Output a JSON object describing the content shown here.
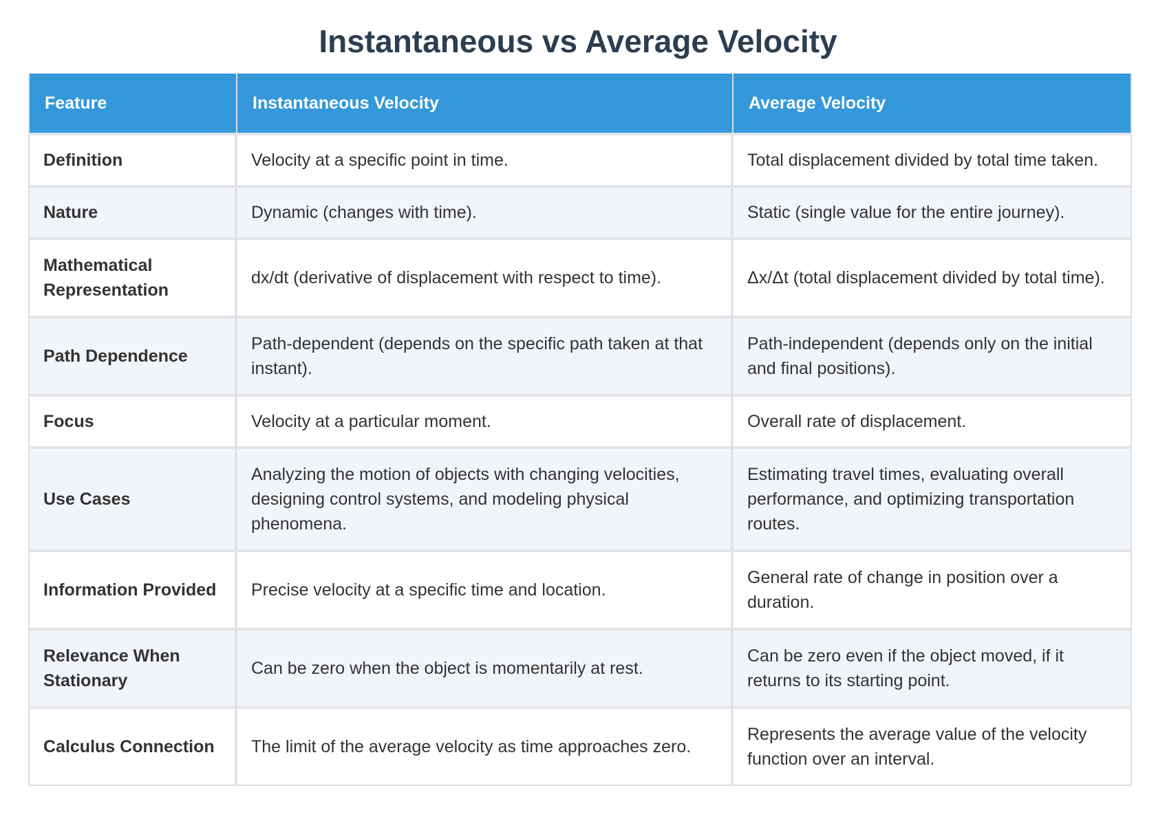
{
  "title": "Instantaneous vs Average Velocity",
  "headers": {
    "feature": "Feature",
    "instantaneous": "Instantaneous Velocity",
    "average": "Average Velocity"
  },
  "rows": [
    {
      "feature": "Definition",
      "instantaneous": "Velocity at a specific point in time.",
      "average": "Total displacement divided by total time taken."
    },
    {
      "feature": "Nature",
      "instantaneous": "Dynamic (changes with time).",
      "average": "Static (single value for the entire journey)."
    },
    {
      "feature": "Mathematical Representation",
      "instantaneous": "dx/dt (derivative of displacement with respect to time).",
      "average": "Δx/Δt (total displacement divided by total time)."
    },
    {
      "feature": "Path Dependence",
      "instantaneous": "Path-dependent (depends on the specific path taken at that instant).",
      "average": "Path-independent (depends only on the initial and final positions)."
    },
    {
      "feature": "Focus",
      "instantaneous": "Velocity at a particular moment.",
      "average": "Overall rate of displacement."
    },
    {
      "feature": "Use Cases",
      "instantaneous": "Analyzing the motion of objects with changing velocities, designing control systems, and modeling physical phenomena.",
      "average": "Estimating travel times, evaluating overall performance, and optimizing transportation routes."
    },
    {
      "feature": "Information Provided",
      "instantaneous": "Precise velocity at a specific time and location.",
      "average": "General rate of change in position over a duration."
    },
    {
      "feature": "Relevance When Stationary",
      "instantaneous": "Can be zero when the object is momentarily at rest.",
      "average": "Can be zero even if the object moved, if it returns to its starting point."
    },
    {
      "feature": "Calculus Connection",
      "instantaneous": "The limit of the average velocity as time approaches zero.",
      "average": "Represents the average value of the velocity function over an interval."
    }
  ],
  "colors": {
    "title": "#2c3e50",
    "header_bg": "#3498db",
    "header_text": "#ffffff",
    "row_alt_bg": "#f1f4f8",
    "border": "#dcdfe3"
  }
}
